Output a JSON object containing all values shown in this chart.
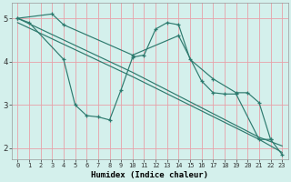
{
  "xlabel": "Humidex (Indice chaleur)",
  "bg_color": "#d4f0ec",
  "grid_color": "#e8a0a8",
  "line_color": "#2d7a6e",
  "xlim": [
    -0.5,
    23.5
  ],
  "ylim": [
    1.75,
    5.35
  ],
  "xticks": [
    0,
    1,
    2,
    3,
    4,
    5,
    6,
    7,
    8,
    9,
    10,
    11,
    12,
    13,
    14,
    15,
    16,
    17,
    18,
    19,
    20,
    21,
    22,
    23
  ],
  "yticks": [
    2,
    3,
    4,
    5
  ],
  "line1_x": [
    0,
    1,
    4,
    5,
    6,
    7,
    8,
    9,
    10,
    11,
    12,
    13,
    14,
    15,
    17,
    19,
    20,
    21,
    22
  ],
  "line1_y": [
    5.0,
    4.9,
    4.05,
    3.0,
    2.75,
    2.72,
    2.65,
    3.35,
    4.1,
    4.15,
    4.75,
    4.9,
    4.85,
    4.05,
    3.6,
    3.28,
    3.28,
    3.05,
    2.2
  ],
  "line2_x": [
    0,
    3,
    4,
    10,
    14,
    16,
    17,
    18,
    19,
    21,
    22,
    23
  ],
  "line2_y": [
    5.0,
    5.1,
    4.85,
    4.15,
    4.6,
    3.55,
    3.28,
    3.25,
    3.25,
    2.2,
    2.2,
    1.85
  ],
  "line3_x": [
    0,
    10,
    21,
    23
  ],
  "line3_y": [
    4.9,
    3.65,
    2.2,
    1.9
  ],
  "line4_x": [
    0,
    10,
    21,
    23
  ],
  "line4_y": [
    5.0,
    3.75,
    2.25,
    2.05
  ]
}
